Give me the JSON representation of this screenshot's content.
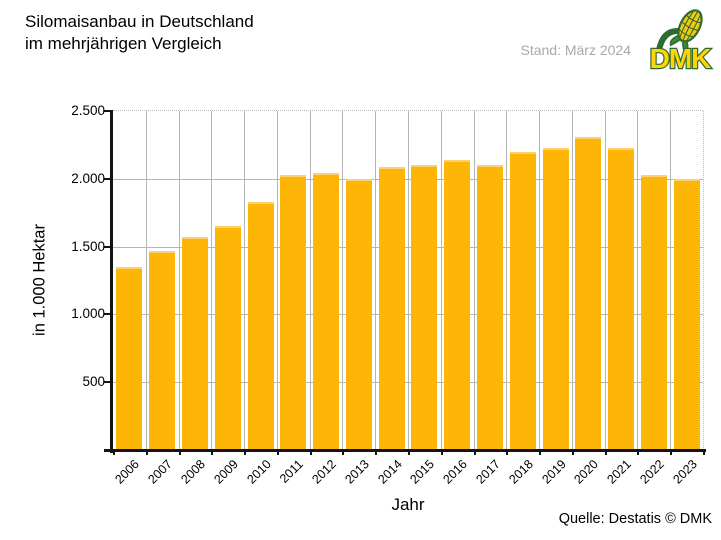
{
  "header": {
    "title_line1": "Silomaisanbau in Deutschland",
    "title_line2": "im mehrjährigen Vergleich",
    "stand": "Stand: März 2024",
    "logo": {
      "text": "DMK",
      "icon": "corn-cob-icon",
      "text_color": "#FFD408",
      "outline_color": "#2F6B2F",
      "leaf_color": "#3A8A3A",
      "cob_color": "#F2C911"
    }
  },
  "chart_data": {
    "type": "bar",
    "title": "Silomaisanbau in Deutschland im mehrjährigen Vergleich",
    "categories": [
      "2006",
      "2007",
      "2008",
      "2009",
      "2010",
      "2011",
      "2012",
      "2013",
      "2014",
      "2015",
      "2016",
      "2017",
      "2018",
      "2019",
      "2020",
      "2021",
      "2022",
      "2023"
    ],
    "values": [
      1350,
      1470,
      1570,
      1650,
      1830,
      2030,
      2040,
      2000,
      2090,
      2100,
      2140,
      2100,
      2200,
      2230,
      2310,
      2230,
      2030,
      2000
    ],
    "xlabel": "Jahr",
    "ylabel": "in 1.000 Hektar",
    "ylim": [
      0,
      2500
    ],
    "ytick_values": [
      500,
      1000,
      1500,
      2000,
      2500
    ],
    "ytick_labels": [
      "500",
      "1.000",
      "1.500",
      "2.000",
      "2.500"
    ],
    "grid": true,
    "legend": false,
    "bar_color": "#FDB605",
    "bar_highlight": "#FDCE72",
    "grid_color": "#B5B5B5",
    "dotted_grid_color": "#BDBDBD",
    "axis_color": "#141414",
    "stand_color": "#A9A9A9"
  },
  "footer": {
    "source": "Quelle: Destatis © DMK"
  }
}
